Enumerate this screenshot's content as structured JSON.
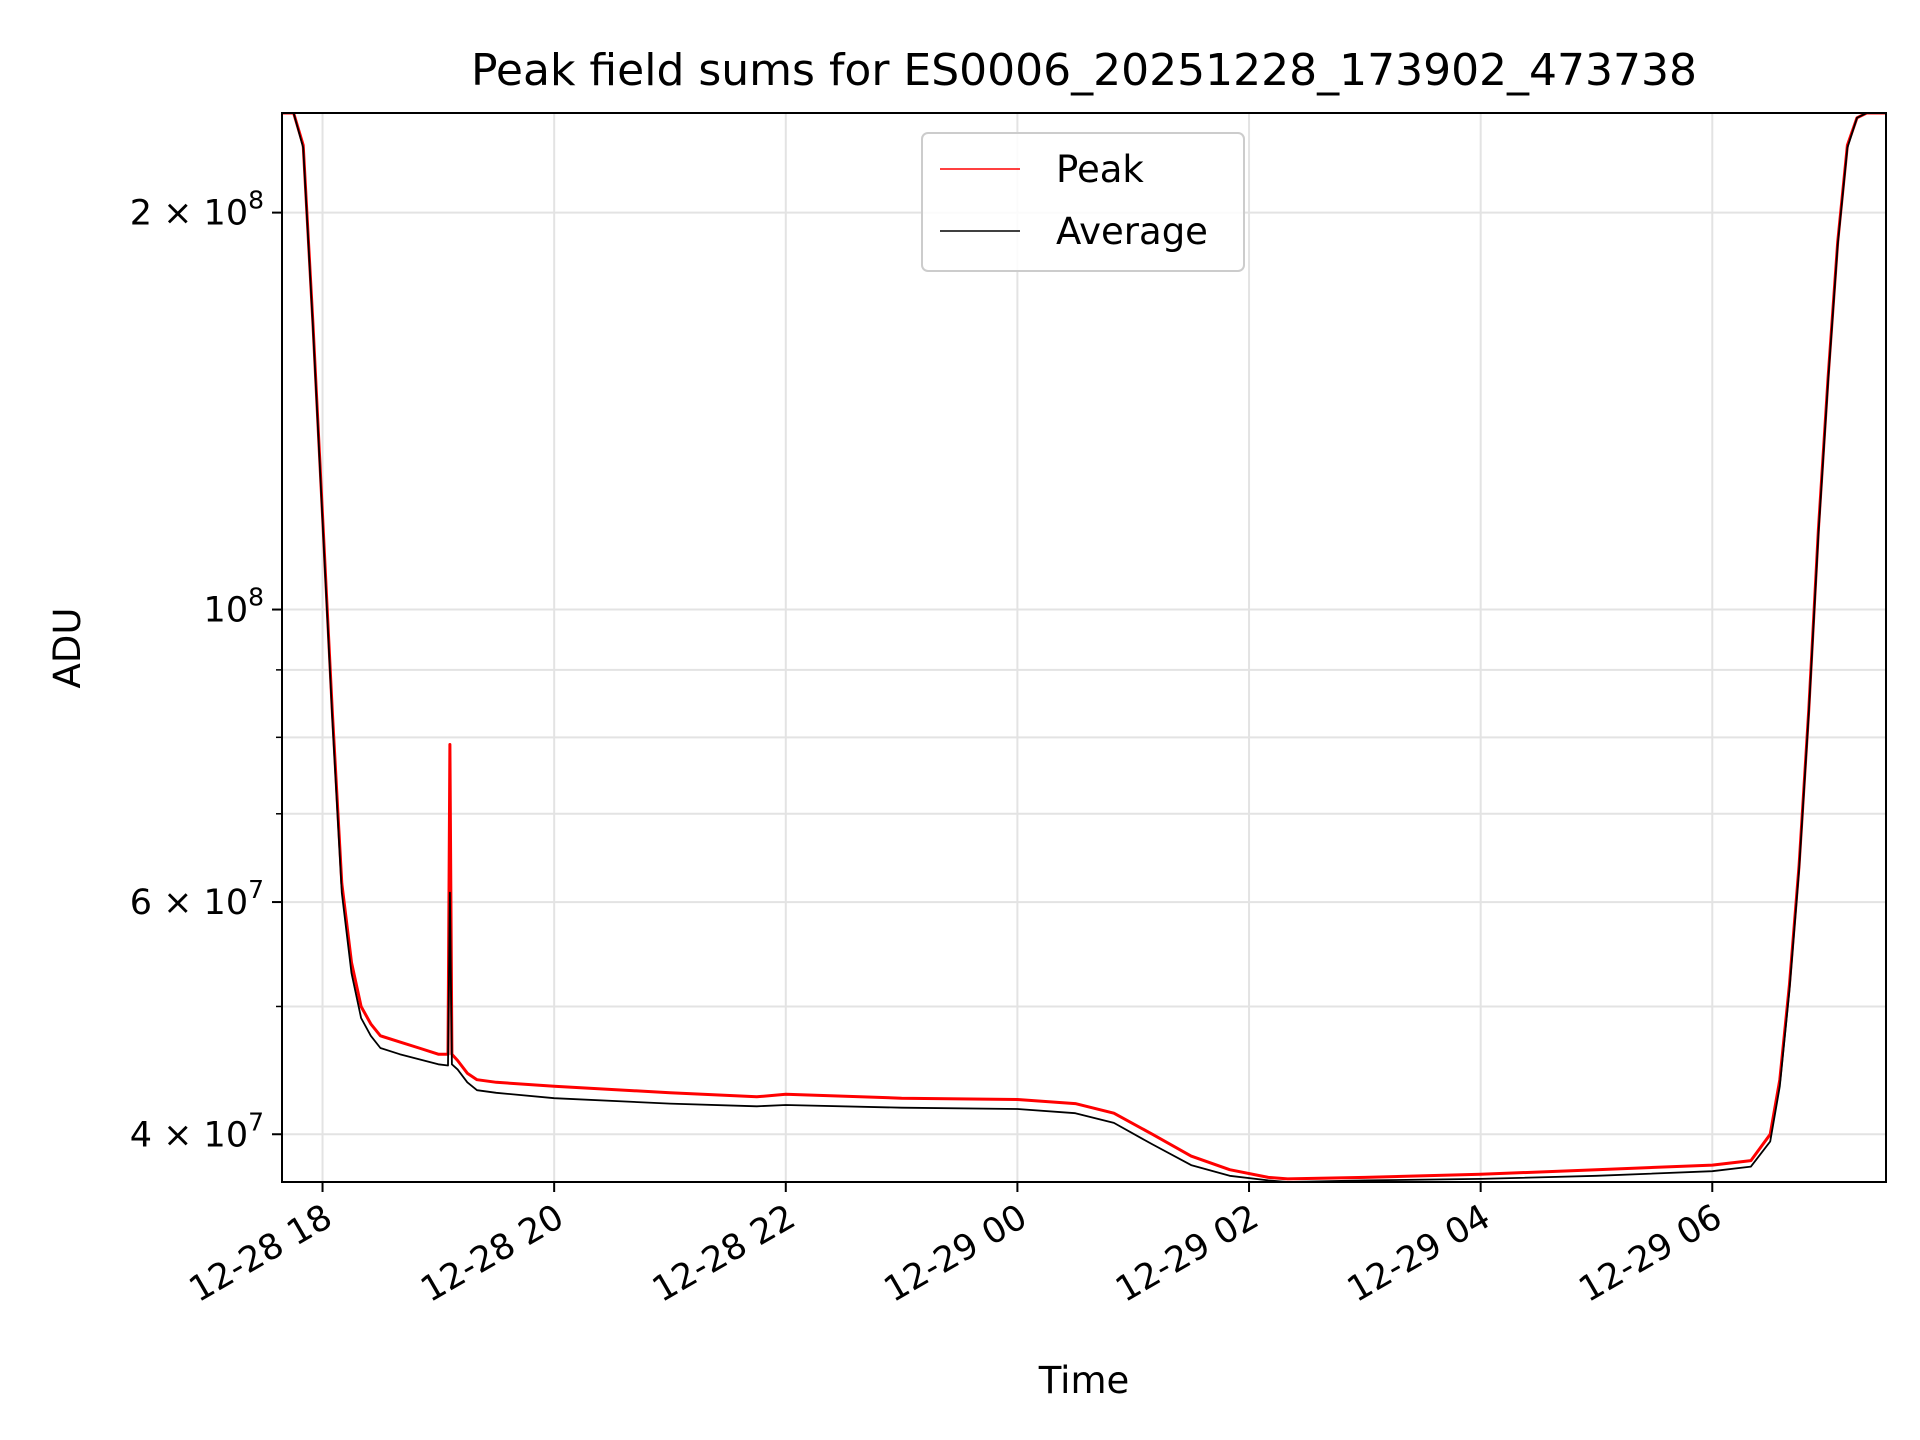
{
  "chart_data": {
    "type": "line",
    "title": "Peak field sums for ES0006_20251228_173902_473738",
    "xlabel": "Time",
    "ylabel": "ADU",
    "x_ticks": [
      {
        "value": "2025-12-28T18:00",
        "label": "12-28 18"
      },
      {
        "value": "2025-12-28T20:00",
        "label": "12-28 20"
      },
      {
        "value": "2025-12-28T22:00",
        "label": "12-28 22"
      },
      {
        "value": "2025-12-29T00:00",
        "label": "12-29 00"
      },
      {
        "value": "2025-12-29T02:00",
        "label": "12-29 02"
      },
      {
        "value": "2025-12-29T04:00",
        "label": "12-29 04"
      },
      {
        "value": "2025-12-29T06:00",
        "label": "12-29 06"
      }
    ],
    "y_scale": "log",
    "y_ticks": [
      {
        "value": 40000000,
        "mantissa": "4 × 10",
        "exponent": "7"
      },
      {
        "value": 60000000,
        "mantissa": "6 × 10",
        "exponent": "7"
      },
      {
        "value": 100000000,
        "mantissa": "10",
        "exponent": "8"
      },
      {
        "value": 200000000,
        "mantissa": "2 × 10",
        "exponent": "8"
      }
    ],
    "y_minor_ticks": [
      50000000,
      70000000,
      80000000,
      90000000
    ],
    "xlim": [
      "2025-12-28T17:39",
      "2025-12-29T07:30"
    ],
    "ylim": [
      36800000,
      238000000
    ],
    "grid": true,
    "legend_position": "upper center",
    "series": [
      {
        "name": "Peak",
        "color": "#ff0000",
        "x": [
          "2025-12-28T17:39",
          "2025-12-28T17:45",
          "2025-12-28T17:50",
          "2025-12-28T17:55",
          "2025-12-28T18:00",
          "2025-12-28T18:05",
          "2025-12-28T18:10",
          "2025-12-28T18:15",
          "2025-12-28T18:20",
          "2025-12-28T18:25",
          "2025-12-28T18:30",
          "2025-12-28T18:40",
          "2025-12-28T18:50",
          "2025-12-28T19:00",
          "2025-12-28T19:05",
          "2025-12-28T19:06",
          "2025-12-28T19:07",
          "2025-12-28T19:10",
          "2025-12-28T19:15",
          "2025-12-28T19:20",
          "2025-12-28T19:30",
          "2025-12-28T20:00",
          "2025-12-28T21:00",
          "2025-12-28T21:45",
          "2025-12-28T22:00",
          "2025-12-28T23:00",
          "2025-12-29T00:00",
          "2025-12-29T00:30",
          "2025-12-29T00:50",
          "2025-12-29T01:10",
          "2025-12-29T01:30",
          "2025-12-29T01:50",
          "2025-12-29T02:10",
          "2025-12-29T02:20",
          "2025-12-29T03:00",
          "2025-12-29T04:00",
          "2025-12-29T05:00",
          "2025-12-29T06:00",
          "2025-12-29T06:20",
          "2025-12-29T06:30",
          "2025-12-29T06:35",
          "2025-12-29T06:40",
          "2025-12-29T06:45",
          "2025-12-29T06:50",
          "2025-12-29T06:55",
          "2025-12-29T07:00",
          "2025-12-29T07:05",
          "2025-12-29T07:10",
          "2025-12-29T07:15",
          "2025-12-29T07:20",
          "2025-12-29T07:30"
        ],
        "y": [
          238000000,
          238000000,
          225000000,
          165000000,
          118000000,
          84000000,
          62000000,
          54000000,
          50000000,
          48500000,
          47500000,
          47000000,
          46500000,
          46000000,
          46000000,
          79000000,
          46000000,
          45500000,
          44500000,
          44000000,
          43800000,
          43500000,
          43000000,
          42700000,
          42900000,
          42600000,
          42500000,
          42200000,
          41500000,
          40000000,
          38500000,
          37600000,
          37100000,
          37000000,
          37100000,
          37300000,
          37600000,
          37900000,
          38200000,
          40000000,
          44000000,
          52000000,
          64000000,
          84000000,
          115000000,
          150000000,
          190000000,
          225000000,
          236000000,
          238000000,
          238000000
        ]
      },
      {
        "name": "Average",
        "color": "#000000",
        "x": [
          "2025-12-28T17:39",
          "2025-12-28T17:45",
          "2025-12-28T17:50",
          "2025-12-28T17:55",
          "2025-12-28T18:00",
          "2025-12-28T18:05",
          "2025-12-28T18:10",
          "2025-12-28T18:15",
          "2025-12-28T18:20",
          "2025-12-28T18:25",
          "2025-12-28T18:30",
          "2025-12-28T18:40",
          "2025-12-28T18:50",
          "2025-12-28T19:00",
          "2025-12-28T19:05",
          "2025-12-28T19:06",
          "2025-12-28T19:07",
          "2025-12-28T19:10",
          "2025-12-28T19:15",
          "2025-12-28T19:20",
          "2025-12-28T19:30",
          "2025-12-28T20:00",
          "2025-12-28T21:00",
          "2025-12-28T21:45",
          "2025-12-28T22:00",
          "2025-12-28T23:00",
          "2025-12-29T00:00",
          "2025-12-29T00:30",
          "2025-12-29T00:50",
          "2025-12-29T01:10",
          "2025-12-29T01:30",
          "2025-12-29T01:50",
          "2025-12-29T02:10",
          "2025-12-29T02:20",
          "2025-12-29T03:00",
          "2025-12-29T04:00",
          "2025-12-29T05:00",
          "2025-12-29T06:00",
          "2025-12-29T06:20",
          "2025-12-29T06:30",
          "2025-12-29T06:35",
          "2025-12-29T06:40",
          "2025-12-29T06:45",
          "2025-12-29T06:50",
          "2025-12-29T06:55",
          "2025-12-29T07:00",
          "2025-12-29T07:05",
          "2025-12-29T07:10",
          "2025-12-29T07:15",
          "2025-12-29T07:20",
          "2025-12-29T07:30"
        ],
        "y": [
          238000000,
          238000000,
          224000000,
          164000000,
          117000000,
          83000000,
          61000000,
          53000000,
          49000000,
          47500000,
          46500000,
          46000000,
          45600000,
          45200000,
          45100000,
          61000000,
          45200000,
          44800000,
          43800000,
          43200000,
          43000000,
          42600000,
          42200000,
          42000000,
          42100000,
          41900000,
          41800000,
          41500000,
          40800000,
          39300000,
          37900000,
          37200000,
          36900000,
          36800000,
          36900000,
          37000000,
          37200000,
          37500000,
          37800000,
          39500000,
          43500000,
          51500000,
          63500000,
          83500000,
          114000000,
          149000000,
          189000000,
          224000000,
          236000000,
          238000000,
          238000000
        ]
      }
    ]
  }
}
